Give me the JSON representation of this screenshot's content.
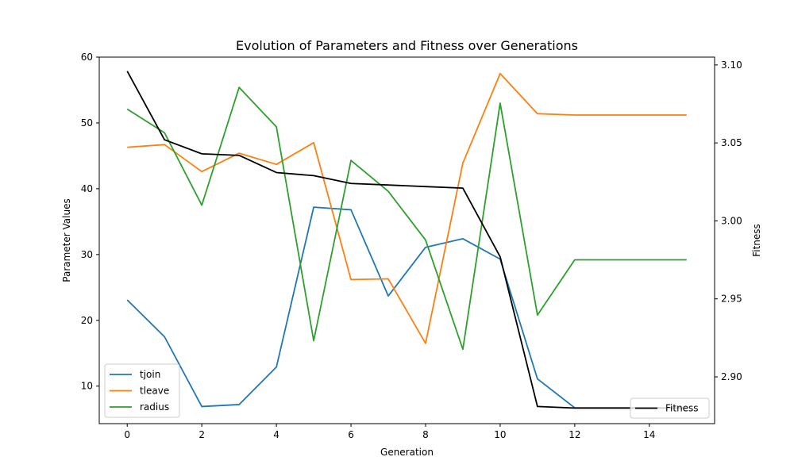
{
  "chart_data": {
    "type": "line",
    "title": "Evolution of Parameters and Fitness over Generations",
    "xlabel": "Generation",
    "ylabel_left": "Parameter Values",
    "ylabel_right": "Fitness",
    "xlim": [
      -0.75,
      15.75
    ],
    "ylim_left": [
      4.3,
      60
    ],
    "ylim_right": [
      2.87,
      3.105
    ],
    "x_ticks": [
      0,
      2,
      4,
      6,
      8,
      10,
      12,
      14
    ],
    "y_ticks_left": [
      10,
      20,
      30,
      40,
      50,
      60
    ],
    "y_ticks_right": [
      2.9,
      2.95,
      3.0,
      3.05,
      3.1
    ],
    "y_tick_labels_right": [
      "2.90",
      "2.95",
      "3.00",
      "3.05",
      "3.10"
    ],
    "x": [
      0,
      1,
      2,
      3,
      4,
      5,
      6,
      7,
      8,
      9,
      10,
      11,
      12,
      13,
      14,
      15
    ],
    "series": [
      {
        "name": "tjoin",
        "axis": "left",
        "color": "#1f77b4",
        "values": [
          23.1,
          17.5,
          6.9,
          7.2,
          12.9,
          37.2,
          36.8,
          23.7,
          31.1,
          32.4,
          29.3,
          11.1,
          6.7,
          6.7,
          6.7,
          6.7
        ]
      },
      {
        "name": "tleave",
        "axis": "left",
        "color": "#ff7f0e",
        "values": [
          46.3,
          46.7,
          42.6,
          45.4,
          43.7,
          47.0,
          26.2,
          26.3,
          16.5,
          43.9,
          57.5,
          51.4,
          51.2,
          51.2,
          51.2,
          51.2
        ]
      },
      {
        "name": "radius",
        "axis": "left",
        "color": "#2ca02c",
        "values": [
          52.1,
          48.5,
          37.5,
          55.4,
          49.4,
          16.9,
          44.3,
          39.6,
          32.2,
          15.6,
          53.0,
          20.8,
          29.2,
          29.2,
          29.2,
          29.2
        ]
      },
      {
        "name": "Fitness",
        "axis": "right",
        "color": "#000000",
        "values": [
          3.096,
          3.052,
          3.043,
          3.042,
          3.031,
          3.029,
          3.024,
          3.023,
          3.022,
          3.021,
          2.977,
          2.881,
          2.88,
          2.88,
          2.88,
          2.88
        ]
      }
    ],
    "legend_left": {
      "placement": "lower-left",
      "entries": [
        "tjoin",
        "tleave",
        "radius"
      ]
    },
    "legend_right": {
      "placement": "lower-right",
      "entries": [
        "Fitness"
      ]
    },
    "grid": false
  }
}
